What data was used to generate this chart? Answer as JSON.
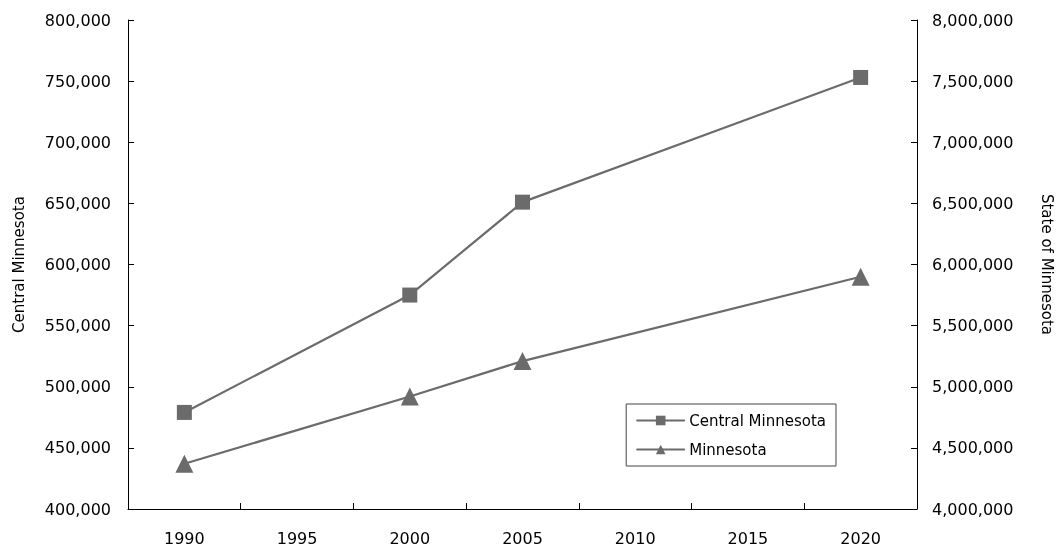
{
  "chart_data": {
    "type": "line",
    "ylabel": "Central Minnesota",
    "y2label": "State of Minnesota",
    "x": [
      1990,
      2000,
      2005,
      2020
    ],
    "series": [
      {
        "name": "Central Minnesota",
        "color": "#6b6b6b",
        "marker": "square",
        "values": [
          479000,
          575000,
          651000,
          753000
        ]
      },
      {
        "name": "Minnesota",
        "color": "#6b6b6b",
        "marker": "triangle",
        "axis": "y2",
        "values": [
          4370000,
          4920000,
          5210000,
          5900000
        ]
      }
    ],
    "xlim": [
      1987.5,
      2022.5
    ],
    "xticks": [
      {
        "value": 1987.5,
        "label": null
      },
      1990,
      {
        "value": 1992.5,
        "label": null
      },
      1995,
      {
        "value": 1997.5,
        "label": null
      },
      2000,
      {
        "value": 2002.5,
        "label": null
      },
      2005,
      {
        "value": 2007.5,
        "label": null
      },
      2010,
      {
        "value": 2012.5,
        "label": null
      },
      2015,
      {
        "value": 2017.5,
        "label": null
      },
      2020,
      {
        "value": 2022.5,
        "label": null
      }
    ],
    "ylim": [
      400000,
      800000
    ],
    "yticks": [
      {
        "value": 400000,
        "label": "400,000"
      },
      {
        "value": 450000,
        "label": "450,000"
      },
      {
        "value": 500000,
        "label": "500,000"
      },
      {
        "value": 550000,
        "label": "550,000"
      },
      {
        "value": 600000,
        "label": "600,000"
      },
      {
        "value": 650000,
        "label": "650,000"
      },
      {
        "value": 700000,
        "label": "700,000"
      },
      {
        "value": 750000,
        "label": "750,000"
      },
      {
        "value": 800000,
        "label": "800,000"
      }
    ],
    "y2lim": [
      4000000,
      8000000
    ],
    "y2ticks": [
      {
        "value": 4000000,
        "label": "4,000,000"
      },
      {
        "value": 4500000,
        "label": "4,500,000"
      },
      {
        "value": 5000000,
        "label": "5,000,000"
      },
      {
        "value": 5500000,
        "label": "5,500,000"
      },
      {
        "value": 6000000,
        "label": "6,000,000"
      },
      {
        "value": 6500000,
        "label": "6,500,000"
      },
      {
        "value": 7000000,
        "label": "7,000,000"
      },
      {
        "value": 7500000,
        "label": "7,500,000"
      },
      {
        "value": 8000000,
        "label": "8,000,000"
      }
    ],
    "grid": false,
    "legend": "bottom right"
  }
}
